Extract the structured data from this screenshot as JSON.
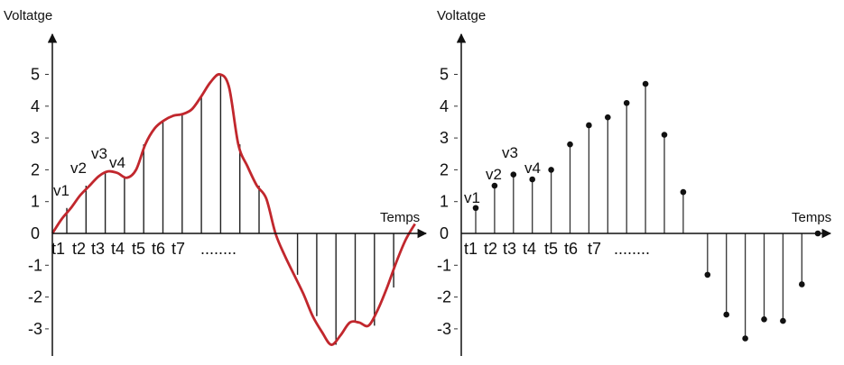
{
  "chart_data": [
    {
      "type": "line",
      "title": "",
      "ylabel": "Voltatge",
      "xlabel": "Temps",
      "ylim": [
        -3.5,
        5.5
      ],
      "yticks": [
        "5",
        "4",
        "3",
        "2",
        "1",
        "0",
        "-1",
        "-2",
        "-3"
      ],
      "time_labels": [
        "t1",
        "t2",
        "t3",
        "t4",
        "t5",
        "t6",
        "t7",
        "........"
      ],
      "value_labels": [
        "v1",
        "v2",
        "v3",
        "v4"
      ],
      "curve_color": "#c1272d",
      "samples": [
        0.8,
        1.5,
        1.9,
        1.75,
        2.8,
        3.5,
        3.75,
        4.3,
        5.0,
        2.8,
        1.5,
        0,
        -1.3,
        -2.6,
        -3.5,
        -2.8,
        -2.9,
        -1.7
      ],
      "curve": {
        "x": [
          0,
          0.5,
          1,
          1.5,
          2,
          2.5,
          3,
          3.5,
          4,
          4.5,
          5,
          5.5,
          6,
          6.5,
          7,
          7.5,
          8,
          8.5,
          9,
          9.5,
          10,
          10.5,
          11,
          11.5,
          12,
          12.5,
          13,
          13.5,
          14,
          14.5,
          15,
          15.5,
          16,
          16.5,
          17,
          17.5,
          18,
          18.5,
          19,
          19.5
        ],
        "y": [
          0,
          0.45,
          0.8,
          1.2,
          1.5,
          1.8,
          1.95,
          1.9,
          1.75,
          2.0,
          2.8,
          3.3,
          3.55,
          3.7,
          3.75,
          3.9,
          4.3,
          4.75,
          5.0,
          4.6,
          2.8,
          2.1,
          1.5,
          1.1,
          0,
          -0.7,
          -1.3,
          -1.9,
          -2.6,
          -3.1,
          -3.5,
          -3.2,
          -2.8,
          -2.8,
          -2.9,
          -2.4,
          -1.7,
          -0.9,
          -0.2,
          0.3
        ]
      }
    },
    {
      "type": "scatter",
      "title": "",
      "ylabel": "Voltatge",
      "xlabel": "Temps",
      "ylim": [
        -3.5,
        5.5
      ],
      "yticks": [
        "5",
        "4",
        "3",
        "2",
        "1",
        "0",
        "-1",
        "-2",
        "-3"
      ],
      "time_labels": [
        "t1",
        "t2",
        "t3",
        "t4",
        "t5",
        "t6",
        "t7",
        "........"
      ],
      "value_labels": [
        "v1",
        "v2",
        "v3",
        "v4"
      ],
      "samples": [
        0.8,
        1.5,
        1.85,
        1.7,
        2.0,
        2.8,
        3.4,
        3.65,
        4.1,
        4.7,
        3.1,
        1.3,
        -1.3,
        -2.55,
        -3.3,
        -2.7,
        -2.75,
        -1.6,
        0
      ]
    }
  ]
}
